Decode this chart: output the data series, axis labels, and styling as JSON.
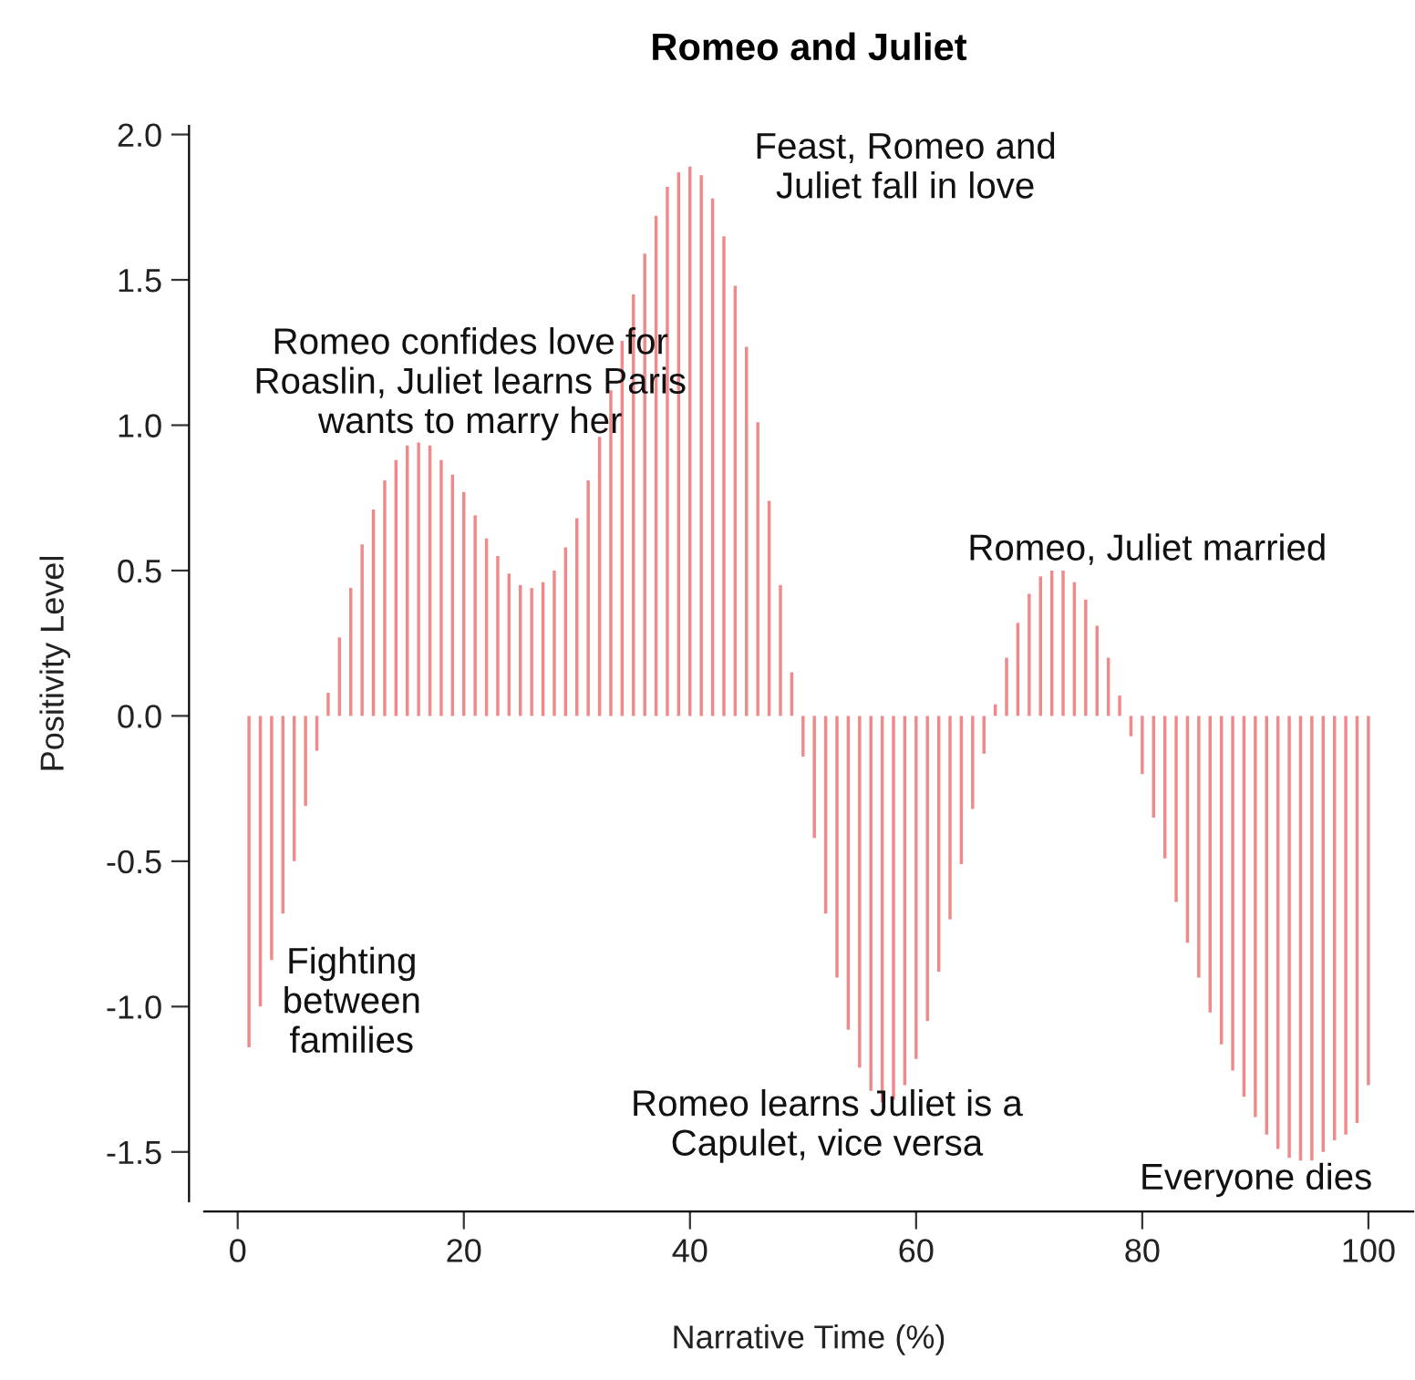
{
  "chart_data": {
    "type": "bar",
    "title": "Romeo and Juliet",
    "xlabel": "Narrative Time (%)",
    "ylabel": "Positivity Level",
    "x": [
      1,
      2,
      3,
      4,
      5,
      6,
      7,
      8,
      9,
      10,
      11,
      12,
      13,
      14,
      15,
      16,
      17,
      18,
      19,
      20,
      21,
      22,
      23,
      24,
      25,
      26,
      27,
      28,
      29,
      30,
      31,
      32,
      33,
      34,
      35,
      36,
      37,
      38,
      39,
      40,
      41,
      42,
      43,
      44,
      45,
      46,
      47,
      48,
      49,
      50,
      51,
      52,
      53,
      54,
      55,
      56,
      57,
      58,
      59,
      60,
      61,
      62,
      63,
      64,
      65,
      66,
      67,
      68,
      69,
      70,
      71,
      72,
      73,
      74,
      75,
      76,
      77,
      78,
      79,
      80,
      81,
      82,
      83,
      84,
      85,
      86,
      87,
      88,
      89,
      90,
      91,
      92,
      93,
      94,
      95,
      96,
      97,
      98,
      99,
      100
    ],
    "series": [
      {
        "color": "#f08a8a",
        "values": [
          -1.14,
          -1.0,
          -0.84,
          -0.68,
          -0.5,
          -0.31,
          -0.12,
          0.08,
          0.27,
          0.44,
          0.59,
          0.71,
          0.81,
          0.88,
          0.93,
          0.94,
          0.93,
          0.88,
          0.83,
          0.77,
          0.69,
          0.61,
          0.55,
          0.49,
          0.45,
          0.44,
          0.46,
          0.5,
          0.58,
          0.68,
          0.81,
          0.96,
          1.12,
          1.29,
          1.45,
          1.59,
          1.72,
          1.82,
          1.87,
          1.89,
          1.86,
          1.78,
          1.65,
          1.48,
          1.27,
          1.01,
          0.74,
          0.45,
          0.15,
          -0.14,
          -0.42,
          -0.68,
          -0.9,
          -1.08,
          -1.21,
          -1.29,
          -1.33,
          -1.32,
          -1.27,
          -1.18,
          -1.05,
          -0.88,
          -0.7,
          -0.51,
          -0.32,
          -0.13,
          0.04,
          0.2,
          0.32,
          0.42,
          0.48,
          0.5,
          0.5,
          0.46,
          0.4,
          0.31,
          0.2,
          0.07,
          -0.07,
          -0.2,
          -0.35,
          -0.49,
          -0.64,
          -0.78,
          -0.9,
          -1.02,
          -1.13,
          -1.22,
          -1.31,
          -1.38,
          -1.44,
          -1.49,
          -1.52,
          -1.53,
          -1.53,
          -1.5,
          -1.46,
          -1.44,
          -1.4,
          -1.27
        ]
      }
    ],
    "xlim": [
      -2.96,
      103.96
    ],
    "ylim": [
      -1.67,
      2.03
    ],
    "xticks": [
      0,
      20,
      40,
      60,
      80,
      100
    ],
    "yticks": [
      {
        "value": -1.5,
        "label": "-1.5"
      },
      {
        "value": -1.0,
        "label": "-1.0"
      },
      {
        "value": -0.5,
        "label": "-0.5"
      },
      {
        "value": 0.0,
        "label": "0.0"
      },
      {
        "value": 0.5,
        "label": "0.5"
      },
      {
        "value": 1.0,
        "label": "1.0"
      },
      {
        "value": 1.5,
        "label": "1.5"
      },
      {
        "value": 2.0,
        "label": "2.0"
      }
    ],
    "annotations": [
      "Romeo confides love for\nRoaslin, Juliet learns Paris\nwants to marry her",
      "Feast, Romeo and\nJuliet fall in love",
      "Romeo, Juliet married",
      "Fighting\nbetween\nfamilies",
      "Romeo learns Juliet is a\nCapulet, vice versa",
      "Everyone dies"
    ],
    "grid": false,
    "legend": false
  }
}
